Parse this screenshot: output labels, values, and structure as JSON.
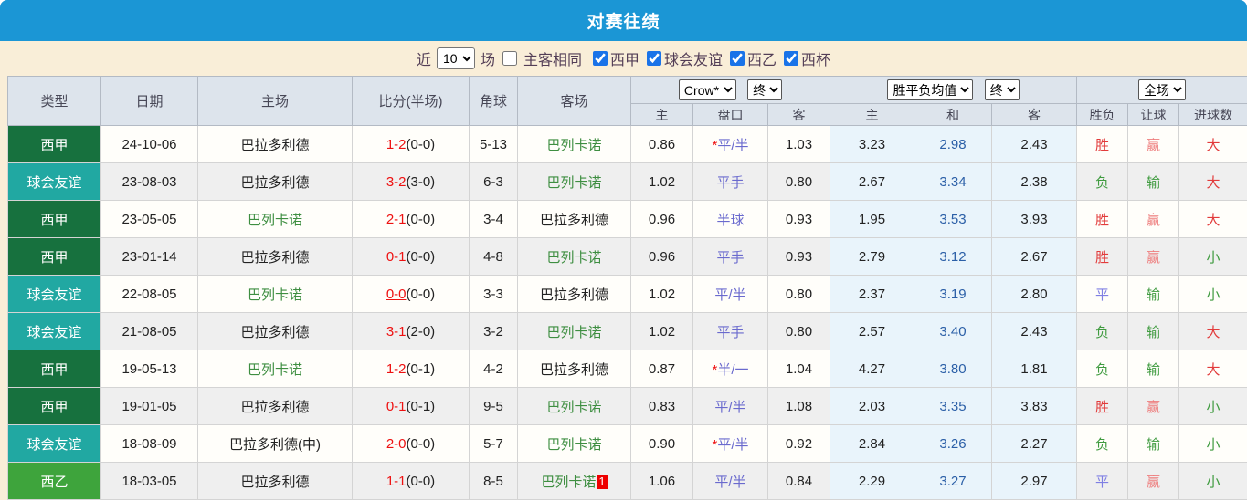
{
  "title": "对赛往绩",
  "filter": {
    "recent_label": "近",
    "recent_value": "10",
    "matches_label": "场",
    "same_venue": {
      "label": "主客相同",
      "checked": false
    },
    "leagues": [
      {
        "label": "西甲",
        "checked": true
      },
      {
        "label": "球会友谊",
        "checked": true
      },
      {
        "label": "西乙",
        "checked": true
      },
      {
        "label": "西杯",
        "checked": true
      }
    ]
  },
  "table": {
    "columns": {
      "type": "类型",
      "date": "日期",
      "home": "主场",
      "score": "比分(半场)",
      "corners": "角球",
      "away": "客场"
    },
    "odds_group": {
      "select1": "Crow*",
      "select2": "终",
      "sub": [
        "主",
        "盘口",
        "客"
      ]
    },
    "avg_group": {
      "select1": "胜平负均值",
      "select2": "终",
      "sub": [
        "主",
        "和",
        "客"
      ]
    },
    "result_group": {
      "select1": "全场",
      "sub": [
        "胜负",
        "让球",
        "进球数"
      ]
    },
    "rows": [
      {
        "type": "西甲",
        "type_key": "liga",
        "date": "24-10-06",
        "home": "巴拉多利德",
        "home_green": false,
        "score": "1-2",
        "half": "(0-0)",
        "score_underline": false,
        "corners": "5-13",
        "away": "巴列卡诺",
        "away_green": true,
        "away_badge": "",
        "odds_home": "0.86",
        "handicap_star": true,
        "handicap": "平/半",
        "odds_away": "1.03",
        "avg_home": "3.23",
        "avg_draw": "2.98",
        "avg_away": "2.43",
        "wdl": "胜",
        "wdl_color": "red",
        "let": "赢",
        "let_color": "pink",
        "goals": "大",
        "goals_color": "red"
      },
      {
        "type": "球会友谊",
        "type_key": "friendly",
        "date": "23-08-03",
        "home": "巴拉多利德",
        "home_green": false,
        "score": "3-2",
        "half": "(3-0)",
        "score_underline": false,
        "corners": "6-3",
        "away": "巴列卡诺",
        "away_green": true,
        "away_badge": "",
        "odds_home": "1.02",
        "handicap_star": false,
        "handicap": "平手",
        "odds_away": "0.80",
        "avg_home": "2.67",
        "avg_draw": "3.34",
        "avg_away": "2.38",
        "wdl": "负",
        "wdl_color": "green",
        "let": "输",
        "let_color": "green",
        "goals": "大",
        "goals_color": "red"
      },
      {
        "type": "西甲",
        "type_key": "liga",
        "date": "23-05-05",
        "home": "巴列卡诺",
        "home_green": true,
        "score": "2-1",
        "half": "(0-0)",
        "score_underline": false,
        "corners": "3-4",
        "away": "巴拉多利德",
        "away_green": false,
        "away_badge": "",
        "odds_home": "0.96",
        "handicap_star": false,
        "handicap": "半球",
        "odds_away": "0.93",
        "avg_home": "1.95",
        "avg_draw": "3.53",
        "avg_away": "3.93",
        "wdl": "胜",
        "wdl_color": "red",
        "let": "赢",
        "let_color": "pink",
        "goals": "大",
        "goals_color": "red"
      },
      {
        "type": "西甲",
        "type_key": "liga",
        "date": "23-01-14",
        "home": "巴拉多利德",
        "home_green": false,
        "score": "0-1",
        "half": "(0-0)",
        "score_underline": false,
        "corners": "4-8",
        "away": "巴列卡诺",
        "away_green": true,
        "away_badge": "",
        "odds_home": "0.96",
        "handicap_star": false,
        "handicap": "平手",
        "odds_away": "0.93",
        "avg_home": "2.79",
        "avg_draw": "3.12",
        "avg_away": "2.67",
        "wdl": "胜",
        "wdl_color": "red",
        "let": "赢",
        "let_color": "pink",
        "goals": "小",
        "goals_color": "green"
      },
      {
        "type": "球会友谊",
        "type_key": "friendly",
        "date": "22-08-05",
        "home": "巴列卡诺",
        "home_green": true,
        "score": "0-0",
        "half": "(0-0)",
        "score_underline": true,
        "corners": "3-3",
        "away": "巴拉多利德",
        "away_green": false,
        "away_badge": "",
        "odds_home": "1.02",
        "handicap_star": false,
        "handicap": "平/半",
        "odds_away": "0.80",
        "avg_home": "2.37",
        "avg_draw": "3.19",
        "avg_away": "2.80",
        "wdl": "平",
        "wdl_color": "blue",
        "let": "输",
        "let_color": "green",
        "goals": "小",
        "goals_color": "green"
      },
      {
        "type": "球会友谊",
        "type_key": "friendly",
        "date": "21-08-05",
        "home": "巴拉多利德",
        "home_green": false,
        "score": "3-1",
        "half": "(2-0)",
        "score_underline": false,
        "corners": "3-2",
        "away": "巴列卡诺",
        "away_green": true,
        "away_badge": "",
        "odds_home": "1.02",
        "handicap_star": false,
        "handicap": "平手",
        "odds_away": "0.80",
        "avg_home": "2.57",
        "avg_draw": "3.40",
        "avg_away": "2.43",
        "wdl": "负",
        "wdl_color": "green",
        "let": "输",
        "let_color": "green",
        "goals": "大",
        "goals_color": "red"
      },
      {
        "type": "西甲",
        "type_key": "liga",
        "date": "19-05-13",
        "home": "巴列卡诺",
        "home_green": true,
        "score": "1-2",
        "half": "(0-1)",
        "score_underline": false,
        "corners": "4-2",
        "away": "巴拉多利德",
        "away_green": false,
        "away_badge": "",
        "odds_home": "0.87",
        "handicap_star": true,
        "handicap": "半/一",
        "odds_away": "1.04",
        "avg_home": "4.27",
        "avg_draw": "3.80",
        "avg_away": "1.81",
        "wdl": "负",
        "wdl_color": "green",
        "let": "输",
        "let_color": "green",
        "goals": "大",
        "goals_color": "red"
      },
      {
        "type": "西甲",
        "type_key": "liga",
        "date": "19-01-05",
        "home": "巴拉多利德",
        "home_green": false,
        "score": "0-1",
        "half": "(0-1)",
        "score_underline": false,
        "corners": "9-5",
        "away": "巴列卡诺",
        "away_green": true,
        "away_badge": "",
        "odds_home": "0.83",
        "handicap_star": false,
        "handicap": "平/半",
        "odds_away": "1.08",
        "avg_home": "2.03",
        "avg_draw": "3.35",
        "avg_away": "3.83",
        "wdl": "胜",
        "wdl_color": "red",
        "let": "赢",
        "let_color": "pink",
        "goals": "小",
        "goals_color": "green"
      },
      {
        "type": "球会友谊",
        "type_key": "friendly",
        "date": "18-08-09",
        "home": "巴拉多利德(中)",
        "home_green": false,
        "score": "2-0",
        "half": "(0-0)",
        "score_underline": false,
        "corners": "5-7",
        "away": "巴列卡诺",
        "away_green": true,
        "away_badge": "",
        "odds_home": "0.90",
        "handicap_star": true,
        "handicap": "平/半",
        "odds_away": "0.92",
        "avg_home": "2.84",
        "avg_draw": "3.26",
        "avg_away": "2.27",
        "wdl": "负",
        "wdl_color": "green",
        "let": "输",
        "let_color": "green",
        "goals": "小",
        "goals_color": "green"
      },
      {
        "type": "西乙",
        "type_key": "segunda",
        "date": "18-03-05",
        "home": "巴拉多利德",
        "home_green": false,
        "score": "1-1",
        "half": "(0-0)",
        "score_underline": false,
        "corners": "8-5",
        "away": "巴列卡诺",
        "away_green": true,
        "away_badge": "1",
        "odds_home": "1.06",
        "handicap_star": false,
        "handicap": "平/半",
        "odds_away": "0.84",
        "avg_home": "2.29",
        "avg_draw": "3.27",
        "avg_away": "2.97",
        "wdl": "平",
        "wdl_color": "blue",
        "let": "赢",
        "let_color": "pink",
        "goals": "小",
        "goals_color": "green"
      }
    ]
  },
  "colors": {
    "accent_blue": "#1b96d5",
    "filter_bg": "#f9eed8",
    "liga_green": "#17713e",
    "friendly_teal": "#21a8a2",
    "segunda_green": "#3ea43c",
    "status_red": "#e23b3b",
    "status_green": "#3f9b3f",
    "status_blue": "#7f7fe3",
    "status_pink": "#ee7d7d"
  }
}
